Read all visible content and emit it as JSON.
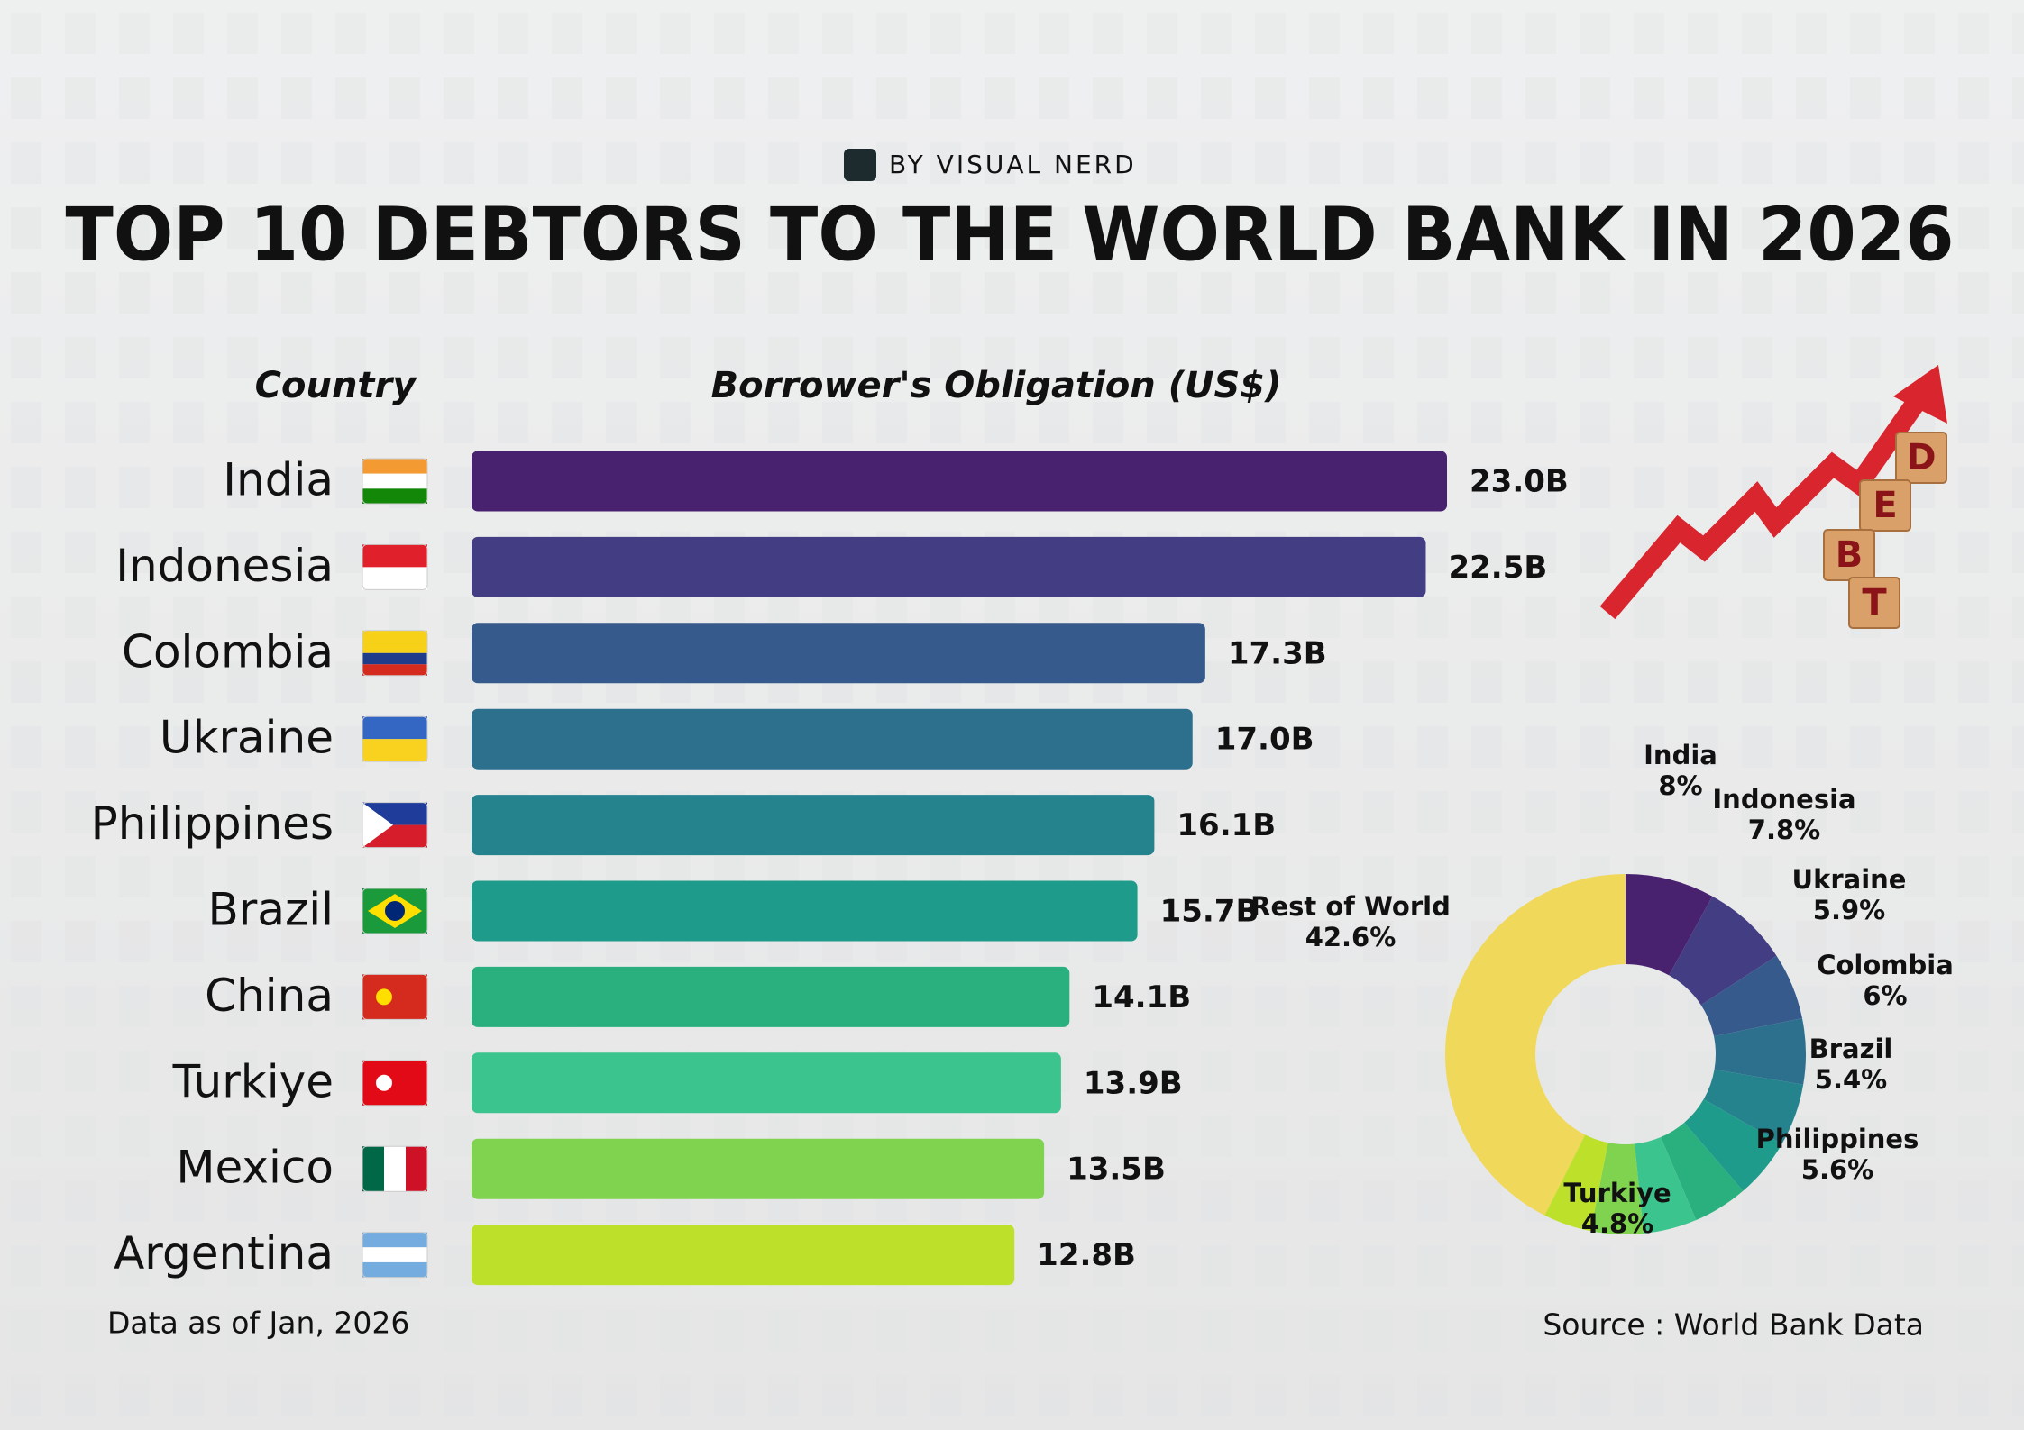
{
  "brand": "BY VISUAL NERD",
  "title": "TOP 10 DEBTORS TO THE WORLD BANK IN 2026",
  "footnote": "Data as of Jan, 2026",
  "source": "Source : World Bank Data",
  "illustration_text": [
    "D",
    "E",
    "B",
    "T"
  ],
  "chart_data": [
    {
      "type": "bar",
      "orientation": "horizontal",
      "ylabel": "Country",
      "xlabel": "Borrower's Obligation (US$)",
      "categories": [
        "India",
        "Indonesia",
        "Colombia",
        "Ukraine",
        "Philippines",
        "Brazil",
        "China",
        "Turkiye",
        "Mexico",
        "Argentina"
      ],
      "values": [
        23.0,
        22.5,
        17.3,
        17.0,
        16.1,
        15.7,
        14.1,
        13.9,
        13.5,
        12.8
      ],
      "value_labels": [
        "23.0B",
        "22.5B",
        "17.3B",
        "17.0B",
        "16.1B",
        "15.7B",
        "14.1B",
        "13.9B",
        "13.5B",
        "12.8B"
      ],
      "colors": [
        "#48216f",
        "#433d84",
        "#365a8c",
        "#2d708e",
        "#25838e",
        "#1e9b8a",
        "#2ab07f",
        "#3cc48e",
        "#7fd34e",
        "#bde02a"
      ]
    },
    {
      "type": "donut",
      "categories": [
        "India",
        "Indonesia",
        "Colombia",
        "Ukraine",
        "Philippines",
        "Brazil",
        null,
        "Turkiye",
        null,
        null,
        "Rest of World"
      ],
      "values": [
        8,
        7.8,
        6,
        5.9,
        5.6,
        5.4,
        4.9,
        4.8,
        4.7,
        4.3,
        42.6
      ],
      "value_labels": [
        "8%",
        "7.8%",
        "6%",
        "5.9%",
        "5.6%",
        "5.4%",
        null,
        "4.8%",
        null,
        null,
        "42.6%"
      ],
      "colors": [
        "#48216f",
        "#433d84",
        "#365a8c",
        "#2d708e",
        "#25838e",
        "#1e9b8a",
        "#2ab07f",
        "#3cc48e",
        "#7fd34e",
        "#bde02a",
        "#f0d85a"
      ]
    }
  ]
}
